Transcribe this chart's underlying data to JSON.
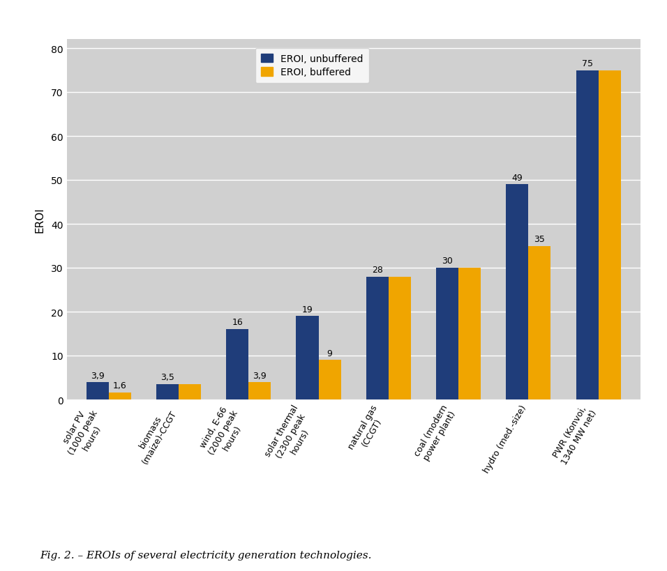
{
  "categories": [
    "solar PV\n(1000 peak\nhours)",
    "biomass\n(maize)-CCGT",
    "wind, E-66\n(2000 peak\nhours)",
    "solar thermal\n(2300 peak\nhours)",
    "natural gas\n(CCGT)",
    "coal (modern\npower plant)",
    "hydro (med.-size)",
    "PWR (Konvoi,\n1340 MW net)"
  ],
  "unbuffered": [
    3.9,
    3.5,
    16,
    19,
    28,
    30,
    49,
    75
  ],
  "buffered": [
    1.6,
    3.5,
    3.9,
    9,
    28,
    30,
    35,
    75
  ],
  "unbuffered_labels": [
    "3,9",
    "3,5",
    "16",
    "19",
    "28",
    "30",
    "49",
    "75"
  ],
  "buffered_labels": [
    "1,6",
    null,
    "3,9",
    "9",
    null,
    null,
    "35",
    null
  ],
  "color_unbuffered": "#1f3d7a",
  "color_buffered": "#f0a500",
  "ylabel": "EROI",
  "ylim": [
    0,
    82
  ],
  "yticks": [
    0,
    10,
    20,
    30,
    40,
    50,
    60,
    70,
    80
  ],
  "legend_unbuffered": "EROI, unbuffered",
  "legend_buffered": "EROI, buffered",
  "caption": "Fig. 2. – EROIs of several electricity generation technologies.",
  "plot_bg_color": "#d0d0d0",
  "outer_bg_color": "#ffffff",
  "bar_width": 0.32,
  "label_fontsize": 9,
  "tick_fontsize": 10,
  "ylabel_fontsize": 11,
  "caption_fontsize": 11,
  "legend_fontsize": 10
}
